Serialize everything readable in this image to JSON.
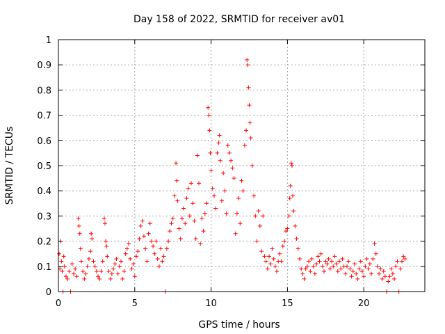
{
  "chart_data": {
    "type": "scatter",
    "title": "Day 158 of 2022, SRMTID for receiver av01",
    "xlabel": "GPS time / hours",
    "ylabel": "SRMTID / TECUs",
    "xlim": [
      0,
      24
    ],
    "ylim": [
      0,
      1
    ],
    "xticks": [
      0,
      5,
      10,
      15,
      20
    ],
    "xtick_labels": [
      "0",
      "5",
      "10",
      "15",
      "20"
    ],
    "yticks": [
      0,
      0.1,
      0.2,
      0.3,
      0.4,
      0.5,
      0.6,
      0.7,
      0.8,
      0.9,
      1
    ],
    "ytick_labels": [
      "0",
      "0.1",
      "0.2",
      "0.3",
      "0.4",
      "0.5",
      "0.6",
      "0.7",
      "0.8",
      "0.9",
      "1"
    ],
    "grid": true,
    "marker": "+",
    "color": "#ff0000",
    "series": [
      {
        "name": "SRMTID",
        "points": [
          [
            0.05,
            0.15
          ],
          [
            0.1,
            0.09
          ],
          [
            0.15,
            0.2
          ],
          [
            0.2,
            0.12
          ],
          [
            0.25,
            0.08
          ],
          [
            0.3,
            0.0
          ],
          [
            0.35,
            0.14
          ],
          [
            0.4,
            0.1
          ],
          [
            0.5,
            0.06
          ],
          [
            0.6,
            0.05
          ],
          [
            0.7,
            0.08
          ],
          [
            0.8,
            0.0
          ],
          [
            0.9,
            0.11
          ],
          [
            1.0,
            0.07
          ],
          [
            1.1,
            0.09
          ],
          [
            1.2,
            0.06
          ],
          [
            1.3,
            0.29
          ],
          [
            1.35,
            0.26
          ],
          [
            1.4,
            0.23
          ],
          [
            1.45,
            0.17
          ],
          [
            1.5,
            0.12
          ],
          [
            1.6,
            0.08
          ],
          [
            1.7,
            0.05
          ],
          [
            1.8,
            0.07
          ],
          [
            1.9,
            0.1
          ],
          [
            2.0,
            0.13
          ],
          [
            2.1,
            0.16
          ],
          [
            2.15,
            0.23
          ],
          [
            2.2,
            0.21
          ],
          [
            2.3,
            0.12
          ],
          [
            2.4,
            0.1
          ],
          [
            2.5,
            0.08
          ],
          [
            2.6,
            0.06
          ],
          [
            2.7,
            0.05
          ],
          [
            2.8,
            0.08
          ],
          [
            2.9,
            0.12
          ],
          [
            3.0,
            0.29
          ],
          [
            3.05,
            0.27
          ],
          [
            3.1,
            0.2
          ],
          [
            3.15,
            0.18
          ],
          [
            3.2,
            0.14
          ],
          [
            3.3,
            0.08
          ],
          [
            3.4,
            0.05
          ],
          [
            3.5,
            0.07
          ],
          [
            3.6,
            0.09
          ],
          [
            3.7,
            0.11
          ],
          [
            3.8,
            0.13
          ],
          [
            3.9,
            0.07
          ],
          [
            4.0,
            0.1
          ],
          [
            4.1,
            0.12
          ],
          [
            4.2,
            0.05
          ],
          [
            4.3,
            0.08
          ],
          [
            4.4,
            0.15
          ],
          [
            4.5,
            0.17
          ],
          [
            4.6,
            0.19
          ],
          [
            4.7,
            0.13
          ],
          [
            4.8,
            0.09
          ],
          [
            4.9,
            0.11
          ],
          [
            5.0,
            0.06
          ],
          [
            5.1,
            0.14
          ],
          [
            5.2,
            0.16
          ],
          [
            5.3,
            0.21
          ],
          [
            5.4,
            0.26
          ],
          [
            5.5,
            0.28
          ],
          [
            5.6,
            0.22
          ],
          [
            5.7,
            0.17
          ],
          [
            5.8,
            0.12
          ],
          [
            5.9,
            0.23
          ],
          [
            6.0,
            0.27
          ],
          [
            6.1,
            0.2
          ],
          [
            6.2,
            0.18
          ],
          [
            6.3,
            0.15
          ],
          [
            6.4,
            0.2
          ],
          [
            6.5,
            0.13
          ],
          [
            6.6,
            0.1
          ],
          [
            6.7,
            0.17
          ],
          [
            6.8,
            0.12
          ],
          [
            6.9,
            0.14
          ],
          [
            7.0,
            0.0
          ],
          [
            7.1,
            0.17
          ],
          [
            7.2,
            0.2
          ],
          [
            7.3,
            0.24
          ],
          [
            7.4,
            0.27
          ],
          [
            7.5,
            0.29
          ],
          [
            7.6,
            0.38
          ],
          [
            7.7,
            0.51
          ],
          [
            7.75,
            0.44
          ],
          [
            7.8,
            0.36
          ],
          [
            7.9,
            0.25
          ],
          [
            8.0,
            0.21
          ],
          [
            8.1,
            0.29
          ],
          [
            8.2,
            0.33
          ],
          [
            8.3,
            0.27
          ],
          [
            8.4,
            0.37
          ],
          [
            8.5,
            0.41
          ],
          [
            8.6,
            0.3
          ],
          [
            8.7,
            0.43
          ],
          [
            8.8,
            0.35
          ],
          [
            8.9,
            0.28
          ],
          [
            9.0,
            0.21
          ],
          [
            9.1,
            0.54
          ],
          [
            9.2,
            0.43
          ],
          [
            9.3,
            0.19
          ],
          [
            9.4,
            0.29
          ],
          [
            9.5,
            0.24
          ],
          [
            9.6,
            0.31
          ],
          [
            9.7,
            0.35
          ],
          [
            9.8,
            0.73
          ],
          [
            9.85,
            0.7
          ],
          [
            9.9,
            0.64
          ],
          [
            9.95,
            0.55
          ],
          [
            10.0,
            0.48
          ],
          [
            10.1,
            0.41
          ],
          [
            10.2,
            0.38
          ],
          [
            10.3,
            0.33
          ],
          [
            10.4,
            0.55
          ],
          [
            10.5,
            0.59
          ],
          [
            10.55,
            0.62
          ],
          [
            10.6,
            0.52
          ],
          [
            10.7,
            0.36
          ],
          [
            10.8,
            0.47
          ],
          [
            10.9,
            0.4
          ],
          [
            11.0,
            0.31
          ],
          [
            11.1,
            0.58
          ],
          [
            11.2,
            0.55
          ],
          [
            11.3,
            0.52
          ],
          [
            11.4,
            0.49
          ],
          [
            11.5,
            0.45
          ],
          [
            11.6,
            0.23
          ],
          [
            11.7,
            0.31
          ],
          [
            11.8,
            0.37
          ],
          [
            11.9,
            0.27
          ],
          [
            12.0,
            0.44
          ],
          [
            12.1,
            0.4
          ],
          [
            12.2,
            0.58
          ],
          [
            12.3,
            0.64
          ],
          [
            12.35,
            0.92
          ],
          [
            12.4,
            0.9
          ],
          [
            12.45,
            0.81
          ],
          [
            12.5,
            0.74
          ],
          [
            12.55,
            0.67
          ],
          [
            12.6,
            0.61
          ],
          [
            12.7,
            0.5
          ],
          [
            12.8,
            0.38
          ],
          [
            12.9,
            0.3
          ],
          [
            13.0,
            0.2
          ],
          [
            13.1,
            0.32
          ],
          [
            13.2,
            0.26
          ],
          [
            13.3,
            0.16
          ],
          [
            13.4,
            0.3
          ],
          [
            13.5,
            0.14
          ],
          [
            13.6,
            0.12
          ],
          [
            13.7,
            0.09
          ],
          [
            13.8,
            0.14
          ],
          [
            13.9,
            0.11
          ],
          [
            14.0,
            0.17
          ],
          [
            14.1,
            0.13
          ],
          [
            14.2,
            0.1
          ],
          [
            14.3,
            0.08
          ],
          [
            14.4,
            0.12
          ],
          [
            14.5,
            0.15
          ],
          [
            14.6,
            0.12
          ],
          [
            14.7,
            0.18
          ],
          [
            14.8,
            0.2
          ],
          [
            14.9,
            0.24
          ],
          [
            15.0,
            0.25
          ],
          [
            15.1,
            0.3
          ],
          [
            15.15,
            0.37
          ],
          [
            15.2,
            0.42
          ],
          [
            15.25,
            0.51
          ],
          [
            15.3,
            0.5
          ],
          [
            15.35,
            0.38
          ],
          [
            15.4,
            0.32
          ],
          [
            15.5,
            0.26
          ],
          [
            15.6,
            0.21
          ],
          [
            15.7,
            0.17
          ],
          [
            15.8,
            0.13
          ],
          [
            15.9,
            0.09
          ],
          [
            16.0,
            0.07
          ],
          [
            16.1,
            0.05
          ],
          [
            16.2,
            0.09
          ],
          [
            16.3,
            0.1
          ],
          [
            16.4,
            0.12
          ],
          [
            16.5,
            0.08
          ],
          [
            16.6,
            0.13
          ],
          [
            16.7,
            0.1
          ],
          [
            16.8,
            0.07
          ],
          [
            16.9,
            0.11
          ],
          [
            17.0,
            0.14
          ],
          [
            17.1,
            0.12
          ],
          [
            17.2,
            0.15
          ],
          [
            17.3,
            0.1
          ],
          [
            17.4,
            0.08
          ],
          [
            17.5,
            0.12
          ],
          [
            17.6,
            0.11
          ],
          [
            17.7,
            0.13
          ],
          [
            17.8,
            0.09
          ],
          [
            17.9,
            0.12
          ],
          [
            18.0,
            0.1
          ],
          [
            18.1,
            0.14
          ],
          [
            18.2,
            0.11
          ],
          [
            18.3,
            0.08
          ],
          [
            18.4,
            0.12
          ],
          [
            18.5,
            0.09
          ],
          [
            18.6,
            0.13
          ],
          [
            18.7,
            0.1
          ],
          [
            18.8,
            0.07
          ],
          [
            18.9,
            0.1
          ],
          [
            19.0,
            0.12
          ],
          [
            19.1,
            0.09
          ],
          [
            19.2,
            0.06
          ],
          [
            19.3,
            0.08
          ],
          [
            19.4,
            0.11
          ],
          [
            19.5,
            0.07
          ],
          [
            19.6,
            0.05
          ],
          [
            19.7,
            0.09
          ],
          [
            19.8,
            0.12
          ],
          [
            19.9,
            0.08
          ],
          [
            20.0,
            0.06
          ],
          [
            20.1,
            0.1
          ],
          [
            20.2,
            0.13
          ],
          [
            20.3,
            0.09
          ],
          [
            20.4,
            0.11
          ],
          [
            20.5,
            0.07
          ],
          [
            20.6,
            0.13
          ],
          [
            20.7,
            0.19
          ],
          [
            20.8,
            0.15
          ],
          [
            20.9,
            0.1
          ],
          [
            21.0,
            0.07
          ],
          [
            21.1,
            0.09
          ],
          [
            21.2,
            0.05
          ],
          [
            21.3,
            0.08
          ],
          [
            21.4,
            0.06
          ],
          [
            21.5,
            0.0
          ],
          [
            21.6,
            0.04
          ],
          [
            21.7,
            0.06
          ],
          [
            21.8,
            0.09
          ],
          [
            21.9,
            0.07
          ],
          [
            22.0,
            0.05
          ],
          [
            22.1,
            0.1
          ],
          [
            22.2,
            0.12
          ],
          [
            22.3,
            0.0
          ],
          [
            22.4,
            0.09
          ],
          [
            22.5,
            0.12
          ],
          [
            22.6,
            0.14
          ],
          [
            22.7,
            0.13
          ]
        ]
      }
    ]
  }
}
